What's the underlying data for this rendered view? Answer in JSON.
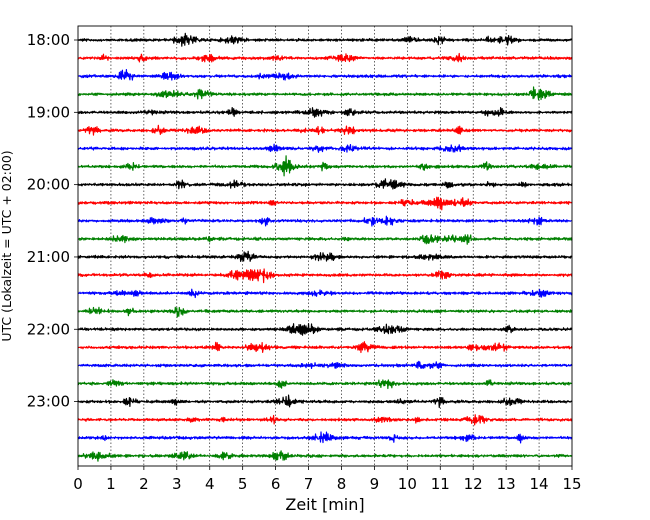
{
  "chart_data": {
    "type": "line",
    "title": "",
    "xlabel": "Zeit  [min]",
    "ylabel": "UTC (Lokalzeit = UTC + 02:00)",
    "xlim": [
      0,
      15
    ],
    "x_ticks": [
      "0",
      "1",
      "2",
      "3",
      "4",
      "5",
      "6",
      "7",
      "8",
      "9",
      "10",
      "11",
      "12",
      "13",
      "14",
      "15"
    ],
    "y_ticks": [
      "18:00",
      "19:00",
      "20:00",
      "21:00",
      "22:00",
      "23:00"
    ],
    "grid": "vertical dotted lines at each minute",
    "trace_interval_minutes": 15,
    "trace_start_times": [
      "18:00",
      "18:15",
      "18:30",
      "18:45",
      "19:00",
      "19:15",
      "19:30",
      "19:45",
      "20:00",
      "20:15",
      "20:30",
      "20:45",
      "21:00",
      "21:15",
      "21:30",
      "21:45",
      "22:00",
      "22:15",
      "22:30",
      "22:45",
      "23:00",
      "23:15",
      "23:30",
      "23:45"
    ],
    "trace_colors": [
      "#000000",
      "#ff0000",
      "#0000ff",
      "#008000"
    ]
  }
}
